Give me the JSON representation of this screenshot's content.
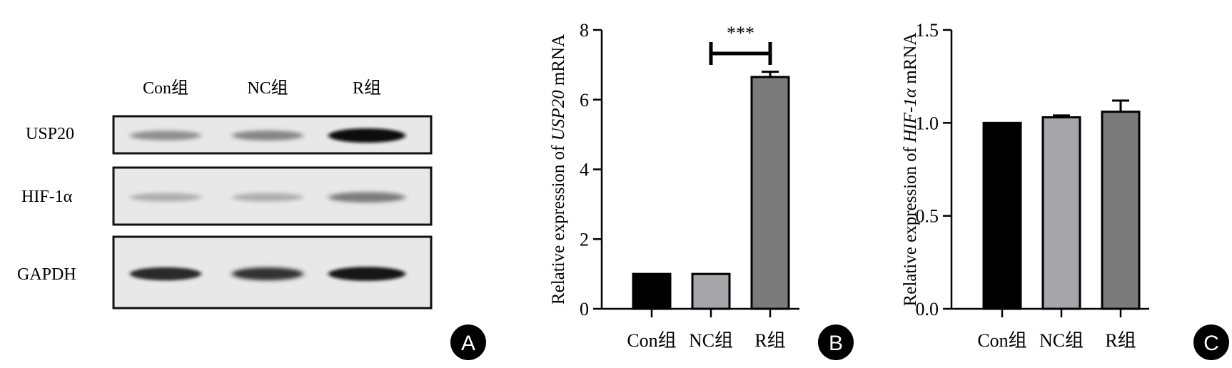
{
  "blot": {
    "lanes": [
      "Con组",
      "NC组",
      "R组"
    ],
    "rows": [
      {
        "label": "USP20",
        "intensities": [
          0.35,
          0.4,
          1.0
        ]
      },
      {
        "label": "HIF-1α",
        "intensities": [
          0.2,
          0.2,
          0.45
        ]
      },
      {
        "label": "GAPDH",
        "intensities": [
          0.85,
          0.8,
          0.95
        ]
      }
    ],
    "panel_letter": "A"
  },
  "colors": {
    "con": "#000000",
    "nc": "#a5a5aa",
    "r": "#7b7b7b",
    "axis": "#000000"
  },
  "chart_data": [
    {
      "type": "bar",
      "panel_letter": "B",
      "categories": [
        "Con组",
        "NC组",
        "R组"
      ],
      "values": [
        1.0,
        1.0,
        6.65
      ],
      "errors": [
        0.0,
        0.0,
        0.15
      ],
      "ylabel": "Relative expression of USP20 mRNA",
      "ylabel_parts": [
        "Relative expression of ",
        "USP20",
        " mRNA"
      ],
      "ylim": [
        0,
        8
      ],
      "yticks": [
        0,
        2,
        4,
        6,
        8
      ],
      "ytick_labels": [
        "0",
        "2",
        "4",
        "6",
        "8"
      ],
      "significance": {
        "from": 1,
        "to": 2,
        "label": "***"
      }
    },
    {
      "type": "bar",
      "panel_letter": "C",
      "categories": [
        "Con组",
        "NC组",
        "R组"
      ],
      "values": [
        1.0,
        1.03,
        1.06
      ],
      "errors": [
        0.0,
        0.01,
        0.06
      ],
      "ylabel": "Relative expression of HIF-1α mRNA",
      "ylabel_parts": [
        "Relative expression of ",
        "HIF-1α",
        " mRNA"
      ],
      "ylim": [
        0,
        1.5
      ],
      "yticks": [
        0,
        0.5,
        1.0,
        1.5
      ],
      "ytick_labels": [
        "0.0",
        "0.5",
        "1.0",
        "1.5"
      ]
    }
  ]
}
